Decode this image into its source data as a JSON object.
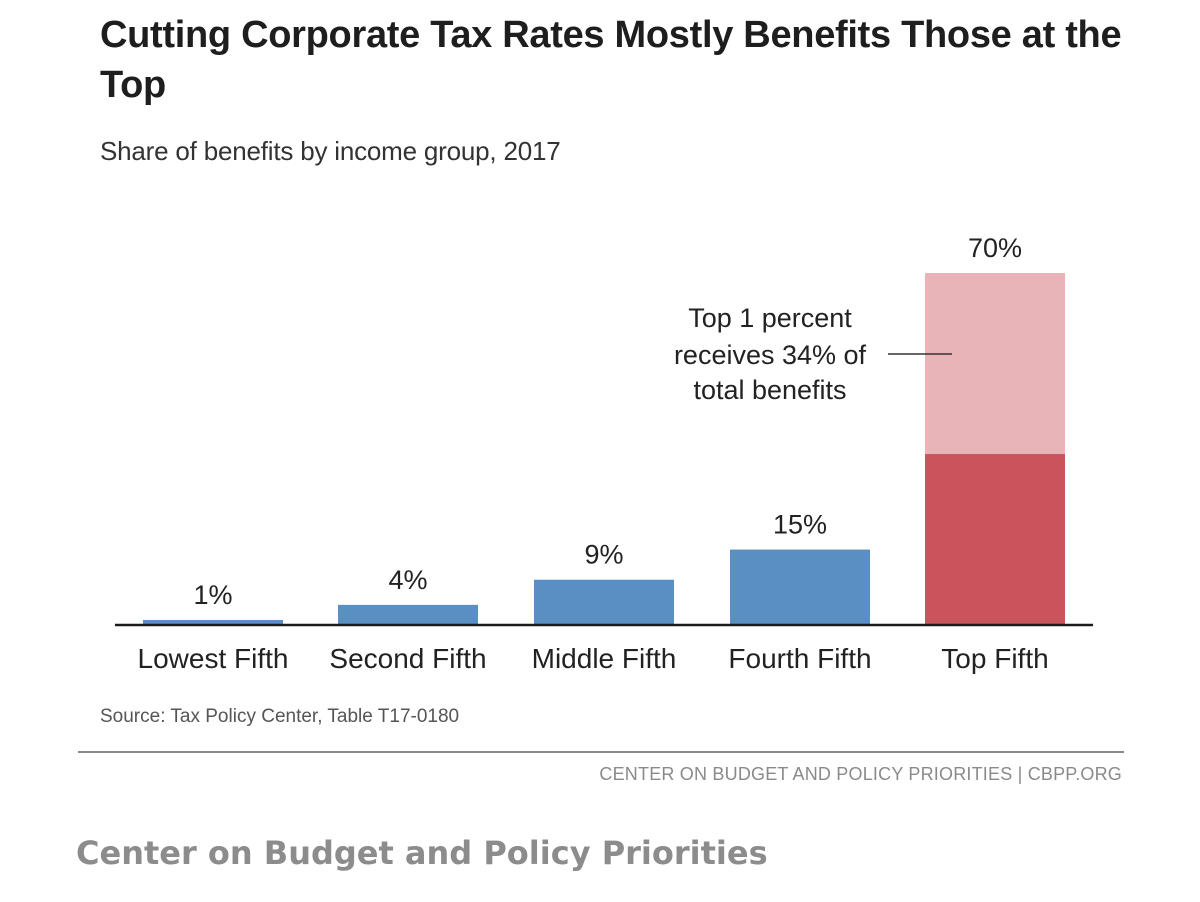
{
  "title": "Cutting Corporate Tax Rates Mostly Benefits Those at the Top",
  "subtitle": "Share of benefits by income group, 2017",
  "source": "Source: Tax Policy Center, Table T17-0180",
  "org_line": "CENTER ON BUDGET AND POLICY PRIORITIES | CBPP.ORG",
  "caption": "Center on Budget and Policy Priorities",
  "chart_data": {
    "type": "bar",
    "title": "Cutting Corporate Tax Rates Mostly Benefits Those at the Top",
    "subtitle": "Share of benefits by income group, 2017",
    "xlabel": "",
    "ylabel": "",
    "ylim": [
      0,
      70
    ],
    "grid": false,
    "categories": [
      "Lowest Fifth",
      "Second Fifth",
      "Middle Fifth",
      "Fourth Fifth",
      "Top Fifth"
    ],
    "values": [
      1,
      4,
      9,
      15,
      70
    ],
    "value_labels": [
      "1%",
      "4%",
      "9%",
      "15%",
      "70%"
    ],
    "top_fifth_breakdown": {
      "top_1_percent_share": 34,
      "rest_of_top_fifth_share": 36
    },
    "annotation": "Top 1 percent receives 34% of total benefits",
    "annotation_lines": [
      "Top 1 percent",
      "receives 34% of",
      "total benefits"
    ],
    "colors": {
      "bar": "#5a8fc3",
      "top_fifth": "#e8b4b8",
      "top_1_percent": "#c9545b",
      "axis": "#1a1a1a"
    }
  }
}
